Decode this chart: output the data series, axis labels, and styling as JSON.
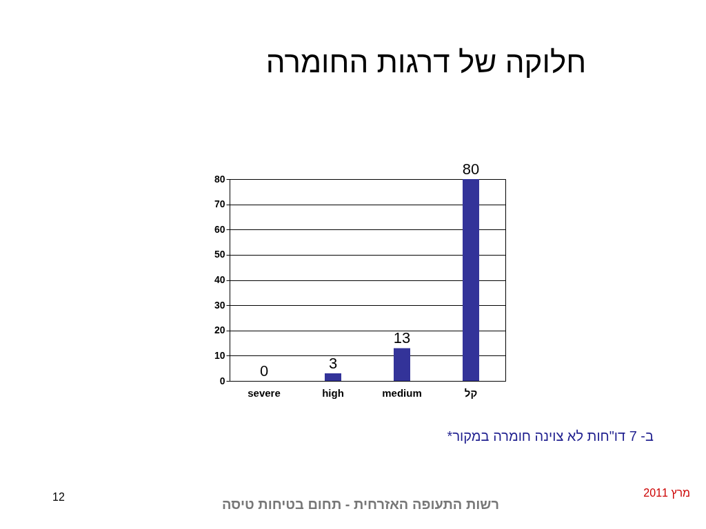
{
  "chart_data": {
    "type": "bar",
    "title": "חלוקה של דרגות החומרה",
    "categories": [
      "severe",
      "high",
      "medium",
      "קל"
    ],
    "values": [
      0,
      3,
      13,
      80
    ],
    "color": "#333399",
    "ylim": [
      0,
      80
    ],
    "yticks": [
      0,
      10,
      20,
      30,
      40,
      50,
      60,
      70,
      80
    ],
    "grid": "y",
    "data_labels": true,
    "annotations": [
      "*ב- 7 דו\"חות לא צוינה חומרה במקור",
      "12",
      "מרץ 2011",
      "רשות התעופה האזרחית - תחום בטיחות טיסה"
    ]
  }
}
